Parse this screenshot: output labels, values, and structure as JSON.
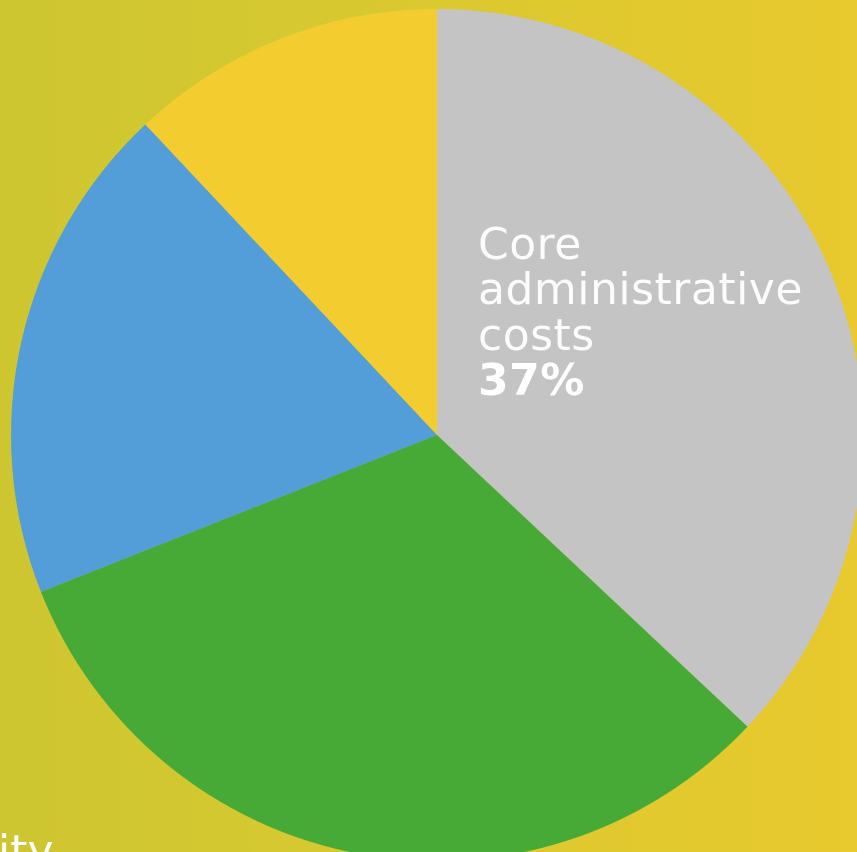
{
  "chart_data": {
    "type": "pie",
    "slices": [
      {
        "label": "Core administrative costs",
        "value": 37,
        "color": "#c4c4c4",
        "display_label": "Core\nadministrative\ncosts",
        "display_value": "37%"
      },
      {
        "label": "",
        "value": 32,
        "color": "#47aa36"
      },
      {
        "label": "",
        "value": 19,
        "color": "#539ed8"
      },
      {
        "label": "",
        "value": 12,
        "color": "#f3cc2f"
      }
    ],
    "start_angle_deg": 0,
    "direction": "clockwise",
    "partial_label": "ity"
  }
}
